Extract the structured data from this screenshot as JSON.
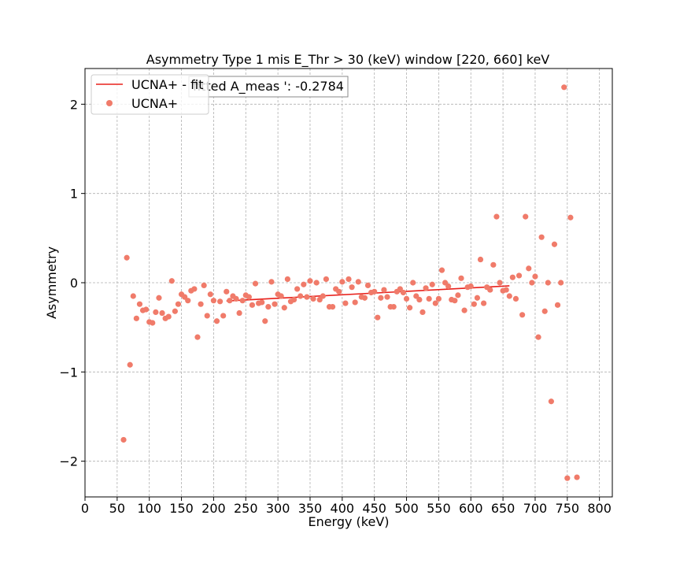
{
  "chart_data": {
    "type": "scatter",
    "title": "Asymmetry Type 1 mis  E_Thr > 30 (keV) window [220, 660] keV",
    "xlabel": "Energy (keV)",
    "ylabel": "Asymmetry",
    "xlim": [
      0,
      820
    ],
    "ylim": [
      -2.4,
      2.4
    ],
    "x_ticks": [
      0,
      50,
      100,
      150,
      200,
      250,
      300,
      350,
      400,
      450,
      500,
      550,
      600,
      650,
      700,
      750,
      800
    ],
    "y_ticks": [
      -2,
      -1,
      0,
      1,
      2
    ],
    "grid": true,
    "legend_position": "top-left",
    "annotation": "fitted A_meas ': -0.2784",
    "colors": {
      "points": "#f07b6a",
      "fit": "#e8201b",
      "grid": "#b0b0b0"
    },
    "series": [
      {
        "name": "UCNA+ - fit",
        "kind": "line",
        "x": [
          220,
          660
        ],
        "y": [
          -0.205,
          -0.035
        ]
      },
      {
        "name": "UCNA+",
        "kind": "scatter",
        "x": [
          60,
          65,
          70,
          75,
          80,
          85,
          90,
          95,
          100,
          105,
          110,
          115,
          120,
          125,
          130,
          135,
          140,
          145,
          150,
          155,
          160,
          165,
          170,
          175,
          180,
          185,
          190,
          195,
          200,
          205,
          210,
          215,
          220,
          225,
          230,
          235,
          240,
          245,
          250,
          255,
          260,
          265,
          270,
          275,
          280,
          285,
          290,
          295,
          300,
          305,
          310,
          315,
          320,
          325,
          330,
          335,
          340,
          345,
          350,
          355,
          360,
          365,
          370,
          375,
          380,
          385,
          390,
          395,
          400,
          405,
          410,
          415,
          420,
          425,
          430,
          435,
          440,
          445,
          450,
          455,
          460,
          465,
          470,
          475,
          480,
          485,
          490,
          495,
          500,
          505,
          510,
          515,
          520,
          525,
          530,
          535,
          540,
          545,
          550,
          555,
          560,
          565,
          570,
          575,
          580,
          585,
          590,
          595,
          600,
          605,
          610,
          615,
          620,
          625,
          630,
          635,
          640,
          645,
          650,
          655,
          660,
          665,
          670,
          675,
          680,
          685,
          690,
          695,
          700,
          705,
          710,
          715,
          720,
          725,
          730,
          735,
          740,
          745,
          750,
          755,
          765
        ],
        "y": [
          -1.76,
          0.28,
          -0.92,
          -0.15,
          -0.4,
          -0.24,
          -0.31,
          -0.3,
          -0.44,
          -0.45,
          -0.33,
          -0.17,
          -0.34,
          -0.4,
          -0.38,
          0.02,
          -0.32,
          -0.24,
          -0.13,
          -0.16,
          -0.2,
          -0.09,
          -0.07,
          -0.61,
          -0.24,
          -0.03,
          -0.37,
          -0.13,
          -0.2,
          -0.43,
          -0.21,
          -0.37,
          -0.1,
          -0.2,
          -0.15,
          -0.18,
          -0.34,
          -0.2,
          -0.14,
          -0.16,
          -0.25,
          -0.01,
          -0.23,
          -0.22,
          -0.43,
          -0.27,
          0.01,
          -0.24,
          -0.13,
          -0.15,
          -0.28,
          0.04,
          -0.21,
          -0.19,
          -0.07,
          -0.15,
          -0.02,
          -0.16,
          0.02,
          -0.18,
          0.0,
          -0.19,
          -0.15,
          0.04,
          -0.27,
          -0.27,
          -0.07,
          -0.1,
          0.01,
          -0.23,
          0.04,
          -0.05,
          -0.22,
          0.01,
          -0.16,
          -0.17,
          -0.03,
          -0.11,
          -0.1,
          -0.39,
          -0.17,
          -0.08,
          -0.16,
          -0.27,
          -0.27,
          -0.1,
          -0.07,
          -0.11,
          -0.18,
          -0.28,
          0.0,
          -0.15,
          -0.19,
          -0.33,
          -0.06,
          -0.18,
          -0.02,
          -0.23,
          -0.18,
          0.14,
          0.0,
          -0.04,
          -0.19,
          -0.2,
          -0.14,
          0.05,
          -0.31,
          -0.05,
          -0.04,
          -0.24,
          -0.17,
          0.26,
          -0.23,
          -0.05,
          -0.08,
          0.2,
          0.74,
          0.0,
          -0.09,
          -0.08,
          -0.15,
          0.06,
          -0.18,
          0.08,
          -0.36,
          0.74,
          0.16,
          0.0,
          0.07,
          -0.61,
          0.51,
          -0.32,
          0.0,
          -1.33,
          0.43,
          -0.25,
          0.0,
          2.19,
          -2.19,
          0.73,
          -2.18
        ]
      }
    ]
  }
}
